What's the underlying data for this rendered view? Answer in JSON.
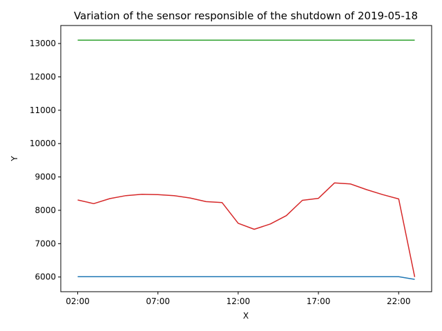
{
  "chart_data": {
    "type": "line",
    "title": "Variation of the sensor responsible of the shutdown of 2019-05-18",
    "xlabel": "X",
    "ylabel": "Y",
    "x": [
      "02:00",
      "03:00",
      "04:00",
      "05:00",
      "06:00",
      "07:00",
      "08:00",
      "09:00",
      "10:00",
      "11:00",
      "12:00",
      "13:00",
      "14:00",
      "15:00",
      "16:00",
      "17:00",
      "18:00",
      "19:00",
      "20:00",
      "21:00",
      "22:00",
      "23:00"
    ],
    "x_ticks": [
      "02:00",
      "07:00",
      "12:00",
      "17:00",
      "22:00"
    ],
    "y_ticks": [
      6000,
      7000,
      8000,
      9000,
      10000,
      11000,
      12000,
      13000
    ],
    "ylim": [
      5560,
      13540
    ],
    "grid": false,
    "series": [
      {
        "color": "#2ca02c",
        "values": [
          13100,
          13100,
          13100,
          13100,
          13100,
          13100,
          13100,
          13100,
          13100,
          13100,
          13100,
          13100,
          13100,
          13100,
          13100,
          13100,
          13100,
          13100,
          13100,
          13100,
          13100,
          13100
        ]
      },
      {
        "color": "#1f77b4",
        "values": [
          6010,
          6010,
          6010,
          6010,
          6010,
          6010,
          6010,
          6010,
          6010,
          6010,
          6010,
          6010,
          6010,
          6010,
          6010,
          6010,
          6010,
          6010,
          6010,
          6010,
          6010,
          5930
        ]
      },
      {
        "color": "#d62728",
        "values": [
          8310,
          8200,
          8350,
          8440,
          8480,
          8470,
          8440,
          8370,
          8260,
          8230,
          7610,
          7430,
          7590,
          7840,
          8300,
          8360,
          8820,
          8790,
          8620,
          8470,
          8340,
          6000
        ]
      }
    ]
  }
}
